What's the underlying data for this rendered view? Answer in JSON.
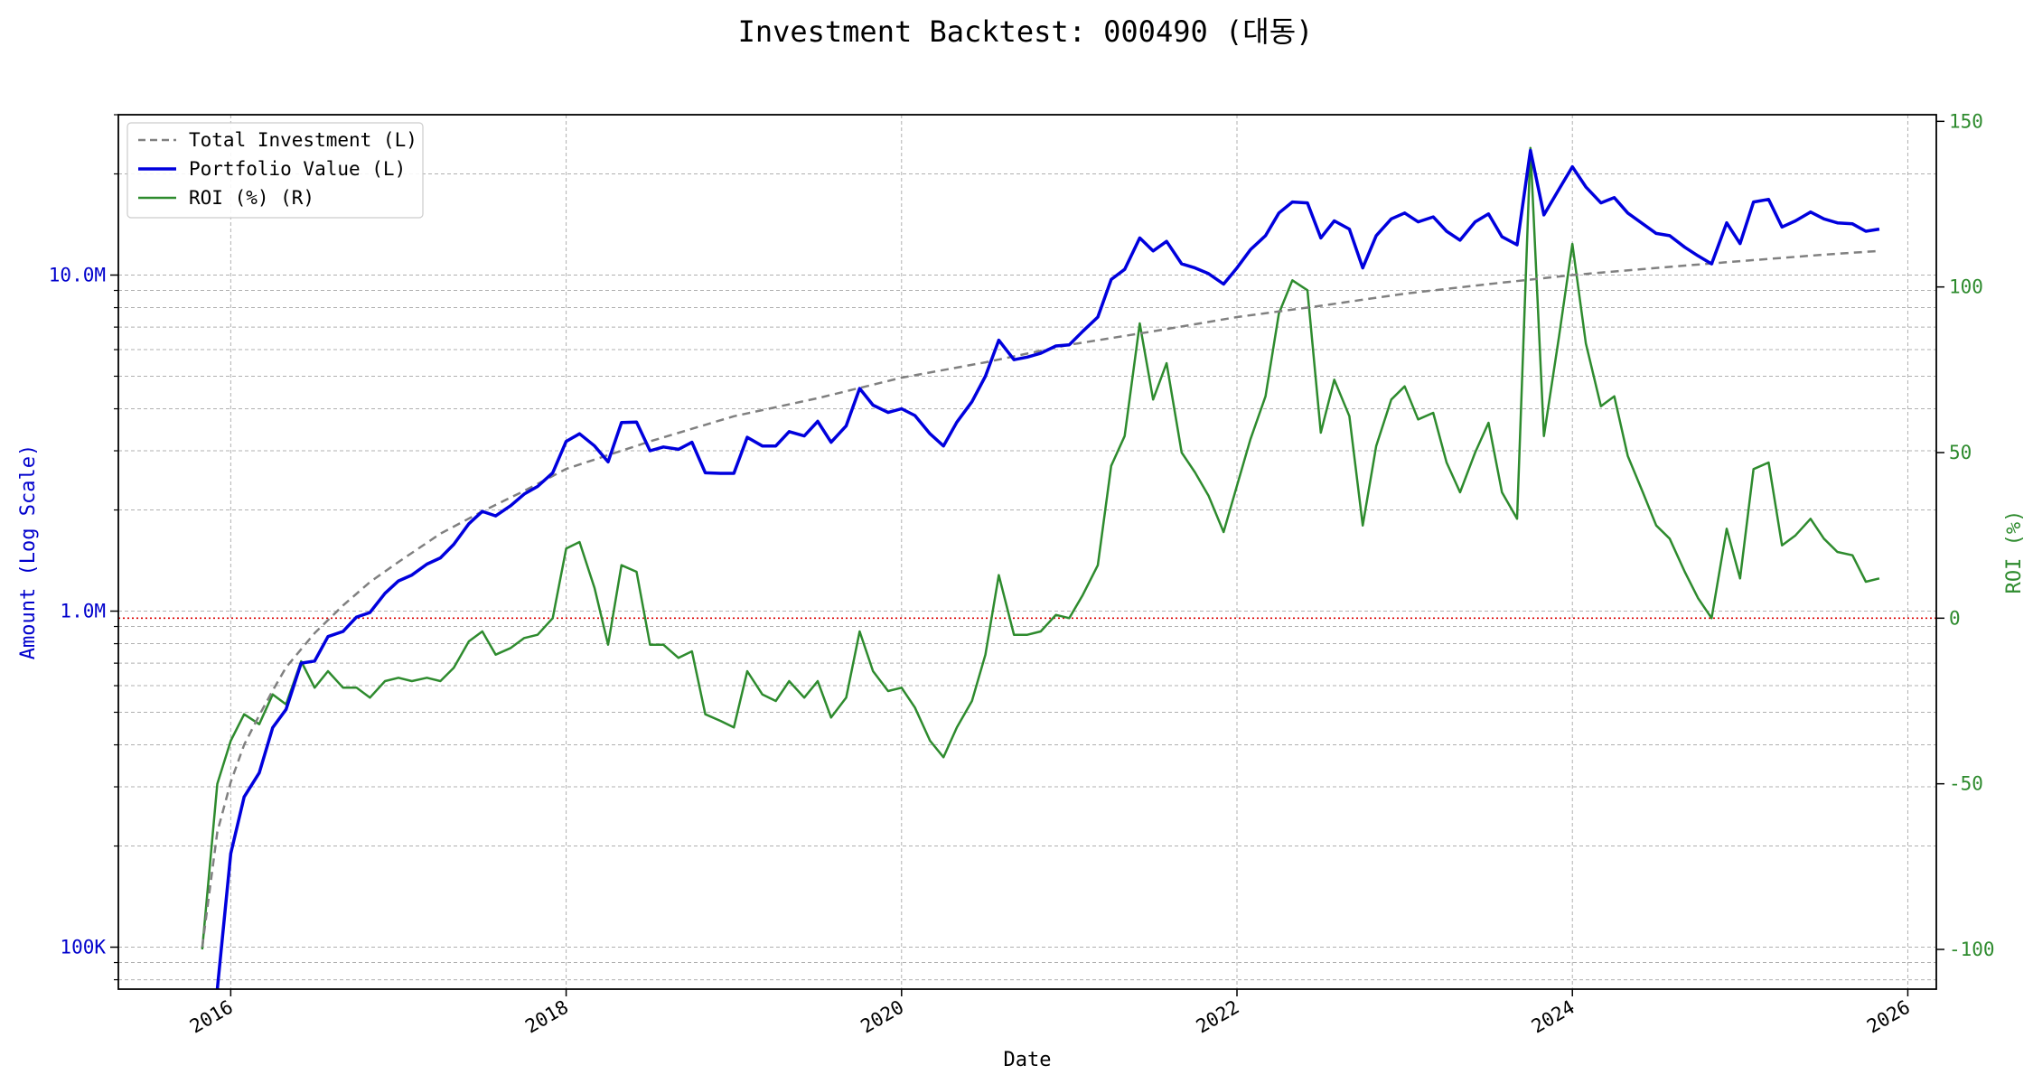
{
  "chart_data": {
    "type": "line",
    "title": "Investment Backtest: 000490 (대동)",
    "xlabel": "Date",
    "ylabel_left": "Amount (Log Scale)",
    "ylabel_right": "ROI (%)",
    "left_scale": "log",
    "left_ylim": [
      75000,
      30000000
    ],
    "right_ylim": [
      -112,
      152
    ],
    "xlim": [
      2015.33,
      2026.17
    ],
    "x_ticks": [
      2016,
      2018,
      2020,
      2022,
      2024,
      2026
    ],
    "x_tick_labels": [
      "2016",
      "2018",
      "2020",
      "2022",
      "2024",
      "2026"
    ],
    "left_ticks": [
      100000,
      1000000,
      10000000
    ],
    "left_tick_labels": [
      "100K",
      "1.0M",
      "10.0M"
    ],
    "right_ticks": [
      -100,
      -50,
      0,
      50,
      100,
      150
    ],
    "right_tick_labels": [
      "-100",
      "-50",
      "0",
      "50",
      "100",
      "150"
    ],
    "grid": true,
    "legend_position": "top-left",
    "zero_reference_line": 0,
    "colors": {
      "total_investment": "#808080",
      "portfolio_value": "#0000dd",
      "roi": "#2e8b2e",
      "left_axis": "#0000cc",
      "right_axis": "#2e8b2e",
      "zero_line": "#dd0000"
    },
    "series": [
      {
        "name": "Total Investment (L)",
        "axis": "left",
        "style": "dashed",
        "x": [
          2015.83,
          2015.92,
          2016.0,
          2016.08,
          2016.17,
          2016.25,
          2016.33,
          2016.42,
          2016.5,
          2016.67,
          2016.83,
          2017.0,
          2017.25,
          2017.5,
          2017.75,
          2018.0,
          2018.5,
          2019.0,
          2019.5,
          2020.0,
          2020.5,
          2021.0,
          2021.5,
          2022.0,
          2022.5,
          2023.0,
          2023.5,
          2024.0,
          2024.5,
          2025.0,
          2025.5,
          2025.83
        ],
        "values": [
          100000,
          220000,
          310000,
          400000,
          490000,
          580000,
          680000,
          770000,
          860000,
          1040000,
          1220000,
          1400000,
          1700000,
          1980000,
          2280000,
          2650000,
          3200000,
          3800000,
          4300000,
          4950000,
          5500000,
          6200000,
          6800000,
          7500000,
          8100000,
          8800000,
          9400000,
          10000000,
          10500000,
          11000000,
          11500000,
          11800000
        ]
      },
      {
        "name": "Portfolio Value (L)",
        "axis": "left",
        "style": "solid",
        "x": [
          2015.92,
          2016.0,
          2016.08,
          2016.17,
          2016.25,
          2016.33,
          2016.42,
          2016.5,
          2016.58,
          2016.67,
          2016.75,
          2016.83,
          2016.92,
          2017.0,
          2017.08,
          2017.17,
          2017.25,
          2017.33,
          2017.42,
          2017.5,
          2017.58,
          2017.67,
          2017.75,
          2017.83,
          2017.92,
          2018.0,
          2018.08,
          2018.17,
          2018.25,
          2018.33,
          2018.42,
          2018.5,
          2018.58,
          2018.67,
          2018.75,
          2018.83,
          2018.92,
          2019.0,
          2019.08,
          2019.17,
          2019.25,
          2019.33,
          2019.42,
          2019.5,
          2019.58,
          2019.67,
          2019.75,
          2019.83,
          2019.92,
          2020.0,
          2020.08,
          2020.17,
          2020.25,
          2020.33,
          2020.42,
          2020.5,
          2020.58,
          2020.67,
          2020.75,
          2020.83,
          2020.92,
          2021.0,
          2021.08,
          2021.17,
          2021.25,
          2021.33,
          2021.42,
          2021.5,
          2021.58,
          2021.67,
          2021.75,
          2021.83,
          2021.92,
          2022.0,
          2022.08,
          2022.17,
          2022.25,
          2022.33,
          2022.42,
          2022.5,
          2022.58,
          2022.67,
          2022.75,
          2022.83,
          2022.92,
          2023.0,
          2023.08,
          2023.17,
          2023.25,
          2023.33,
          2023.42,
          2023.5,
          2023.58,
          2023.67,
          2023.75,
          2023.83,
          2023.92,
          2024.0,
          2024.08,
          2024.17,
          2024.25,
          2024.33,
          2024.42,
          2024.5,
          2024.58,
          2024.67,
          2024.75,
          2024.83,
          2024.92,
          2025.0,
          2025.08,
          2025.17,
          2025.25,
          2025.33,
          2025.42,
          2025.5,
          2025.58,
          2025.67,
          2025.75,
          2025.83
        ],
        "values": [
          75000,
          190000,
          280000,
          330000,
          450000,
          510000,
          700000,
          710000,
          840000,
          870000,
          960000,
          990000,
          1130000,
          1230000,
          1280000,
          1380000,
          1440000,
          1580000,
          1820000,
          1980000,
          1920000,
          2060000,
          2230000,
          2350000,
          2580000,
          3200000,
          3370000,
          3100000,
          2780000,
          3640000,
          3650000,
          3000000,
          3080000,
          3030000,
          3180000,
          2580000,
          2570000,
          2570000,
          3290000,
          3100000,
          3100000,
          3420000,
          3320000,
          3670000,
          3180000,
          3560000,
          4600000,
          4100000,
          3900000,
          4000000,
          3820000,
          3370000,
          3100000,
          3650000,
          4200000,
          5000000,
          6400000,
          5600000,
          5700000,
          5850000,
          6150000,
          6200000,
          6800000,
          7500000,
          9700000,
          10400000,
          12900000,
          11800000,
          12600000,
          10800000,
          10500000,
          10100000,
          9400000,
          10500000,
          11900000,
          13100000,
          15300000,
          16500000,
          16400000,
          12900000,
          14500000,
          13700000,
          10500000,
          13100000,
          14700000,
          15300000,
          14400000,
          14900000,
          13500000,
          12700000,
          14400000,
          15200000,
          13000000,
          12300000,
          23500000,
          15100000,
          18000000,
          21000000,
          18300000,
          16400000,
          17000000,
          15300000,
          14200000,
          13300000,
          13100000,
          12100000,
          11400000,
          10800000,
          14300000,
          12400000,
          16500000,
          16800000,
          13900000,
          14500000,
          15400000,
          14700000,
          14300000,
          14200000,
          13500000,
          13700000
        ]
      },
      {
        "name": "ROI (%) (R)",
        "axis": "right",
        "style": "solid",
        "x": [
          2015.83,
          2015.92,
          2016.0,
          2016.08,
          2016.17,
          2016.25,
          2016.33,
          2016.42,
          2016.5,
          2016.58,
          2016.67,
          2016.75,
          2016.83,
          2016.92,
          2017.0,
          2017.08,
          2017.17,
          2017.25,
          2017.33,
          2017.42,
          2017.5,
          2017.58,
          2017.67,
          2017.75,
          2017.83,
          2017.92,
          2018.0,
          2018.08,
          2018.17,
          2018.25,
          2018.33,
          2018.42,
          2018.5,
          2018.58,
          2018.67,
          2018.75,
          2018.83,
          2018.92,
          2019.0,
          2019.08,
          2019.17,
          2019.25,
          2019.33,
          2019.42,
          2019.5,
          2019.58,
          2019.67,
          2019.75,
          2019.83,
          2019.92,
          2020.0,
          2020.08,
          2020.17,
          2020.25,
          2020.33,
          2020.42,
          2020.5,
          2020.58,
          2020.67,
          2020.75,
          2020.83,
          2020.92,
          2021.0,
          2021.08,
          2021.17,
          2021.25,
          2021.33,
          2021.42,
          2021.5,
          2021.58,
          2021.67,
          2021.75,
          2021.83,
          2021.92,
          2022.0,
          2022.08,
          2022.17,
          2022.25,
          2022.33,
          2022.42,
          2022.5,
          2022.58,
          2022.67,
          2022.75,
          2022.83,
          2022.92,
          2023.0,
          2023.08,
          2023.17,
          2023.25,
          2023.33,
          2023.42,
          2023.5,
          2023.58,
          2023.67,
          2023.75,
          2023.83,
          2023.92,
          2024.0,
          2024.08,
          2024.17,
          2024.25,
          2024.33,
          2024.42,
          2024.5,
          2024.58,
          2024.67,
          2024.75,
          2024.83,
          2024.92,
          2025.0,
          2025.08,
          2025.17,
          2025.25,
          2025.33,
          2025.42,
          2025.5,
          2025.58,
          2025.67,
          2025.75,
          2025.83
        ],
        "values": [
          -100,
          -50,
          -37,
          -29,
          -32,
          -23,
          -26,
          -13,
          -21,
          -16,
          -21,
          -21,
          -24,
          -19,
          -18,
          -19,
          -18,
          -19,
          -15,
          -7,
          -4,
          -11,
          -9,
          -6,
          -5,
          0,
          21,
          23,
          9,
          -8,
          16,
          14,
          -8,
          -8,
          -12,
          -10,
          -29,
          -31,
          -33,
          -16,
          -23,
          -25,
          -19,
          -24,
          -19,
          -30,
          -24,
          -4,
          -16,
          -22,
          -21,
          -27,
          -37,
          -42,
          -33,
          -25,
          -11,
          13,
          -5,
          -5,
          -4,
          1,
          0,
          7,
          16,
          46,
          55,
          89,
          66,
          77,
          50,
          44,
          37,
          26,
          40,
          54,
          67,
          92,
          102,
          99,
          56,
          72,
          61,
          28,
          52,
          66,
          70,
          60,
          62,
          47,
          38,
          50,
          59,
          38,
          30,
          142,
          55,
          85,
          113,
          83,
          64,
          67,
          49,
          38,
          28,
          24,
          14,
          6,
          0,
          27,
          12,
          45,
          47,
          22,
          25,
          30,
          24,
          20,
          19,
          11,
          12
        ]
      }
    ]
  }
}
